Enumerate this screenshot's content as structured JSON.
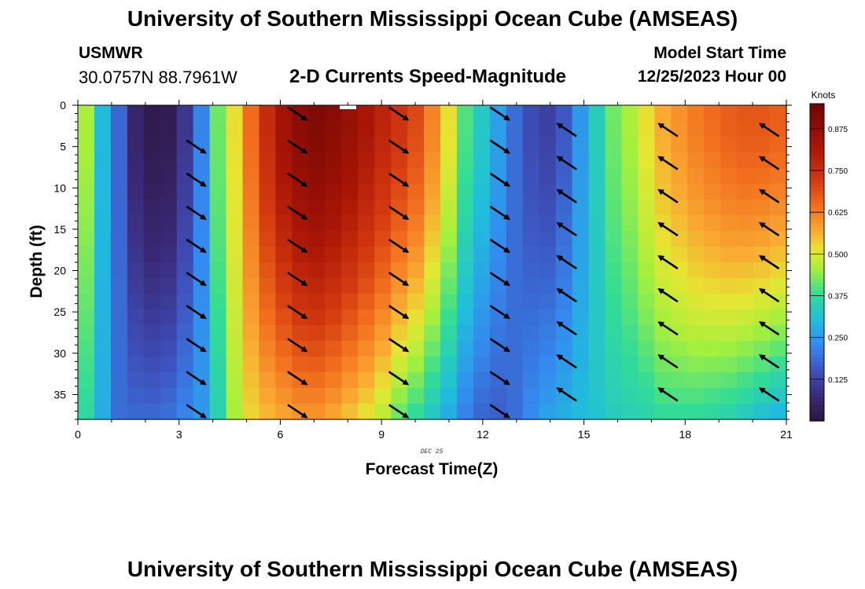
{
  "header": {
    "title": "University of Southern Mississippi Ocean Cube (AMSEAS)",
    "station": "USMWR",
    "coordinates": "30.0757N  88.7961W",
    "subtitle": "2-D Currents Speed-Magnitude",
    "model_start_label": "Model Start Time",
    "model_start_value": "12/25/2023 Hour 00"
  },
  "footer": {
    "title": "University of Southern Mississippi Ocean Cube (AMSEAS)"
  },
  "chart_data": {
    "type": "heatmap",
    "title": "2-D Currents Speed-Magnitude",
    "xlabel": "Forecast Time(Z)",
    "ylabel": "Depth (ft)",
    "x_ticks": [
      0,
      3,
      6,
      9,
      12,
      15,
      18,
      21
    ],
    "y_ticks": [
      0,
      5,
      10,
      15,
      20,
      25,
      30,
      35
    ],
    "xlim": [
      0,
      21
    ],
    "ylim": [
      0,
      38
    ],
    "date_label": "DEC 25",
    "colorbar": {
      "label": "Knots",
      "min": 0,
      "max": 0.95,
      "ticks": [
        "0.125",
        "0.250",
        "0.375",
        "0.500",
        "0.625",
        "0.750",
        "0.875"
      ]
    },
    "surface_speed_by_hour": [
      0.46,
      0.3,
      0.18,
      0.06,
      0.02,
      0.03,
      0.1,
      0.22,
      0.42,
      0.52,
      0.65,
      0.76,
      0.84,
      0.89,
      0.91,
      0.89,
      0.86,
      0.82,
      0.78,
      0.74,
      0.7,
      0.62,
      0.52,
      0.4,
      0.33,
      0.26,
      0.19,
      0.14,
      0.12,
      0.16,
      0.25,
      0.34,
      0.42,
      0.46,
      0.52,
      0.57,
      0.6,
      0.63,
      0.65,
      0.67,
      0.68,
      0.68,
      0.67
    ],
    "bottom_speed_by_hour": [
      0.37,
      0.28,
      0.19,
      0.18,
      0.18,
      0.19,
      0.22,
      0.25,
      0.35,
      0.46,
      0.53,
      0.56,
      0.58,
      0.6,
      0.6,
      0.58,
      0.55,
      0.52,
      0.48,
      0.42,
      0.38,
      0.33,
      0.28,
      0.22,
      0.18,
      0.17,
      0.19,
      0.23,
      0.26,
      0.28,
      0.3,
      0.32,
      0.34,
      0.35,
      0.36,
      0.38,
      0.38,
      0.38,
      0.37,
      0.36,
      0.34,
      0.32,
      0.3
    ],
    "vector_columns": [
      {
        "hour": 3.5,
        "dir": "se",
        "depths": [
          5,
          9,
          13,
          17,
          21,
          25,
          29,
          33,
          37
        ]
      },
      {
        "hour": 6.5,
        "dir": "se",
        "depths": [
          1,
          5,
          9,
          13,
          17,
          21,
          25,
          29,
          33,
          37
        ]
      },
      {
        "hour": 9.5,
        "dir": "se",
        "depths": [
          1,
          5,
          9,
          13,
          17,
          21,
          25,
          29,
          33,
          37
        ]
      },
      {
        "hour": 12.5,
        "dir": "se",
        "depths": [
          1,
          5,
          9,
          13,
          17,
          21,
          25,
          29,
          33,
          37
        ]
      },
      {
        "hour": 14.5,
        "dir": "nw",
        "depths": [
          3,
          7,
          11,
          15,
          19,
          23,
          27,
          31,
          35
        ]
      },
      {
        "hour": 17.5,
        "dir": "nw",
        "depths": [
          3,
          7,
          11,
          15,
          19,
          23,
          27,
          31,
          35
        ]
      },
      {
        "hour": 20.5,
        "dir": "nw",
        "depths": [
          3,
          7,
          11,
          15,
          19,
          23,
          27,
          31,
          35
        ]
      }
    ]
  }
}
